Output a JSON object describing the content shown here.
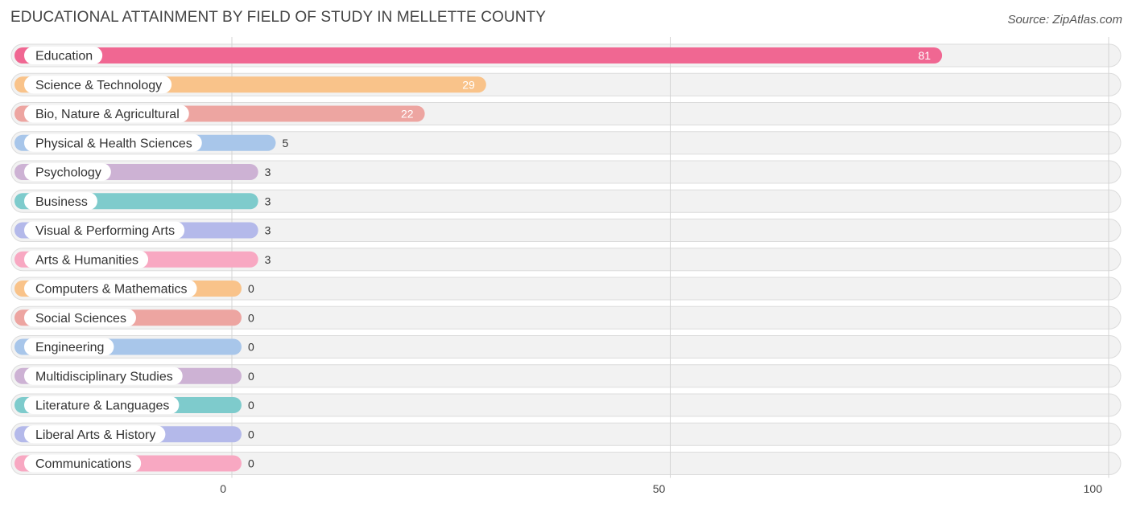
{
  "chart_data": {
    "type": "bar",
    "orientation": "horizontal",
    "title": "EDUCATIONAL ATTAINMENT BY FIELD OF STUDY IN MELLETTE COUNTY",
    "source": "Source: ZipAtlas.com",
    "categories": [
      "Education",
      "Science & Technology",
      "Bio, Nature & Agricultural",
      "Physical & Health Sciences",
      "Psychology",
      "Business",
      "Visual & Performing Arts",
      "Arts & Humanities",
      "Computers & Mathematics",
      "Social Sciences",
      "Engineering",
      "Multidisciplinary Studies",
      "Literature & Languages",
      "Liberal Arts & History",
      "Communications"
    ],
    "values": [
      81,
      29,
      22,
      5,
      3,
      3,
      3,
      3,
      0,
      0,
      0,
      0,
      0,
      0,
      0
    ],
    "colors": [
      "#f06792",
      "#f9c38a",
      "#eda5a1",
      "#a8c6ea",
      "#cdb2d4",
      "#7ecbcc",
      "#b4b9ea",
      "#f8a8c2",
      "#f9c38a",
      "#eda5a1",
      "#a8c6ea",
      "#cdb2d4",
      "#7ecbcc",
      "#b4b9ea",
      "#f8a8c2"
    ],
    "xlim": [
      0,
      100
    ],
    "xticks": [
      0,
      50,
      100
    ],
    "xlabel": "",
    "ylabel": "",
    "grid": true
  }
}
